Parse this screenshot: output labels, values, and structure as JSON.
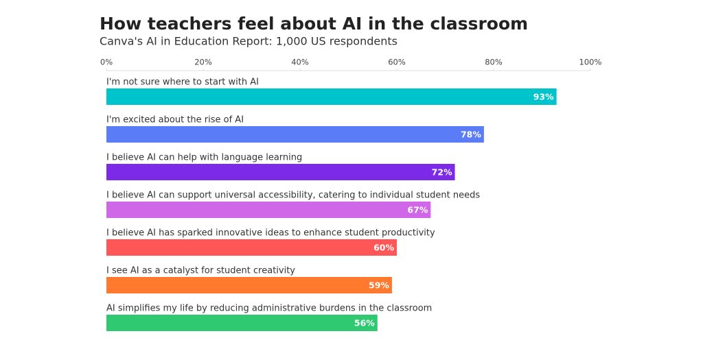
{
  "chart_data": {
    "type": "bar",
    "orientation": "horizontal",
    "title": "How teachers feel about AI in the classroom",
    "subtitle": "Canva's AI in Education Report: 1,000 US respondents",
    "categories": [
      "I'm not sure where to start with AI",
      "I'm excited about the rise of AI",
      "I believe AI can help with language learning",
      "I believe AI can support universal accessibility, catering to individual student needs",
      "I believe AI has sparked innovative ideas to enhance student productivity",
      "I see AI as a catalyst for student creativity",
      "AI simplifies my life by reducing administrative burdens in the classroom"
    ],
    "values": [
      93,
      78,
      72,
      67,
      60,
      59,
      56
    ],
    "value_labels": [
      "93%",
      "78%",
      "72%",
      "67%",
      "60%",
      "59%",
      "56%"
    ],
    "colors": [
      "#00c4cc",
      "#5b7cf7",
      "#7c2ae8",
      "#d066e8",
      "#ff5757",
      "#ff7a2e",
      "#2ec971"
    ],
    "xlim": [
      0,
      100
    ],
    "xticks": [
      {
        "value": 0,
        "label": "0%"
      },
      {
        "value": 20,
        "label": "20%"
      },
      {
        "value": 40,
        "label": "40%"
      },
      {
        "value": 60,
        "label": "60%"
      },
      {
        "value": 80,
        "label": "80%"
      },
      {
        "value": 100,
        "label": "100%"
      }
    ]
  }
}
